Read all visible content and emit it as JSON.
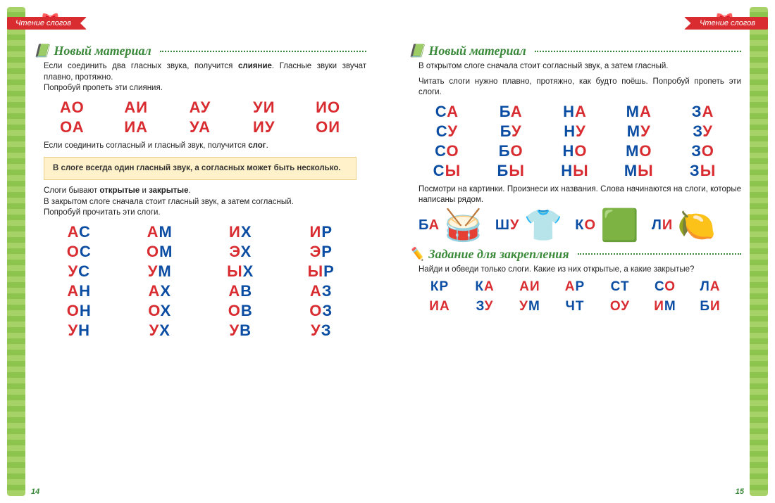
{
  "ribbon": "Чтение слогов",
  "colors": {
    "red": "#d82c31",
    "blue": "#0b4da2",
    "green": "#3a8a3a",
    "ruleBg": "#fff1c9"
  },
  "left": {
    "pageNum": "14",
    "section1": "Новый материал",
    "text1": "Если соединить два гласных звука, получится слияние. Гласные звуки звучат плавно, протяжно.",
    "text1b": "Попробуй пропеть эти слияния.",
    "grid1": [
      [
        [
          "А",
          "r"
        ],
        [
          "О",
          "r"
        ]
      ],
      [
        [
          "А",
          "r"
        ],
        [
          "И",
          "r"
        ]
      ],
      [
        [
          "А",
          "r"
        ],
        [
          "У",
          "r"
        ]
      ],
      [
        [
          "У",
          "r"
        ],
        [
          "И",
          "r"
        ]
      ],
      [
        [
          "И",
          "r"
        ],
        [
          "О",
          "r"
        ]
      ],
      [
        [
          "О",
          "r"
        ],
        [
          "А",
          "r"
        ]
      ],
      [
        [
          "И",
          "r"
        ],
        [
          "А",
          "r"
        ]
      ],
      [
        [
          "У",
          "r"
        ],
        [
          "А",
          "r"
        ]
      ],
      [
        [
          "И",
          "r"
        ],
        [
          "У",
          "r"
        ]
      ],
      [
        [
          "О",
          "r"
        ],
        [
          "И",
          "r"
        ]
      ]
    ],
    "text2": "Если соединить согласный и гласный звук, получится слог.",
    "rule": "В слоге всегда один гласный звук, а согласных может быть несколько.",
    "text3": "Слоги бывают открытые и закрытые.",
    "text4": "В закрытом слоге сначала стоит гласный звук, а затем согласный.",
    "text5": "Попробуй прочитать эти слоги.",
    "grid2": [
      [
        [
          "А",
          "r"
        ],
        [
          "С",
          "b"
        ]
      ],
      [
        [
          "А",
          "r"
        ],
        [
          "М",
          "b"
        ]
      ],
      [
        [
          "И",
          "r"
        ],
        [
          "Х",
          "b"
        ]
      ],
      [
        [
          "И",
          "r"
        ],
        [
          "Р",
          "b"
        ]
      ],
      [
        [
          "О",
          "r"
        ],
        [
          "С",
          "b"
        ]
      ],
      [
        [
          "О",
          "r"
        ],
        [
          "М",
          "b"
        ]
      ],
      [
        [
          "Э",
          "r"
        ],
        [
          "Х",
          "b"
        ]
      ],
      [
        [
          "Э",
          "r"
        ],
        [
          "Р",
          "b"
        ]
      ],
      [
        [
          "У",
          "r"
        ],
        [
          "С",
          "b"
        ]
      ],
      [
        [
          "У",
          "r"
        ],
        [
          "М",
          "b"
        ]
      ],
      [
        [
          "Ы",
          "r"
        ],
        [
          "Х",
          "b"
        ]
      ],
      [
        [
          "Ы",
          "r"
        ],
        [
          "Р",
          "b"
        ]
      ],
      [
        [
          "А",
          "r"
        ],
        [
          "Н",
          "b"
        ]
      ],
      [
        [
          "А",
          "r"
        ],
        [
          "Х",
          "b"
        ]
      ],
      [
        [
          "А",
          "r"
        ],
        [
          "В",
          "b"
        ]
      ],
      [
        [
          "А",
          "r"
        ],
        [
          "З",
          "b"
        ]
      ],
      [
        [
          "О",
          "r"
        ],
        [
          "Н",
          "b"
        ]
      ],
      [
        [
          "О",
          "r"
        ],
        [
          "Х",
          "b"
        ]
      ],
      [
        [
          "О",
          "r"
        ],
        [
          "В",
          "b"
        ]
      ],
      [
        [
          "О",
          "r"
        ],
        [
          "З",
          "b"
        ]
      ],
      [
        [
          "У",
          "r"
        ],
        [
          "Н",
          "b"
        ]
      ],
      [
        [
          "У",
          "r"
        ],
        [
          "Х",
          "b"
        ]
      ],
      [
        [
          "У",
          "r"
        ],
        [
          "В",
          "b"
        ]
      ],
      [
        [
          "У",
          "r"
        ],
        [
          "З",
          "b"
        ]
      ]
    ]
  },
  "right": {
    "pageNum": "15",
    "section1": "Новый материал",
    "text1": "В открытом слоге сначала стоит согласный звук, а затем гласный.",
    "text2": "Читать слоги нужно плавно, протяжно, как будто поёшь. Попробуй пропеть эти слоги.",
    "grid1": [
      [
        [
          "С",
          "b"
        ],
        [
          "А",
          "r"
        ]
      ],
      [
        [
          "Б",
          "b"
        ],
        [
          "А",
          "r"
        ]
      ],
      [
        [
          "Н",
          "b"
        ],
        [
          "А",
          "r"
        ]
      ],
      [
        [
          "М",
          "b"
        ],
        [
          "А",
          "r"
        ]
      ],
      [
        [
          "З",
          "b"
        ],
        [
          "А",
          "r"
        ]
      ],
      [
        [
          "С",
          "b"
        ],
        [
          "У",
          "r"
        ]
      ],
      [
        [
          "Б",
          "b"
        ],
        [
          "У",
          "r"
        ]
      ],
      [
        [
          "Н",
          "b"
        ],
        [
          "У",
          "r"
        ]
      ],
      [
        [
          "М",
          "b"
        ],
        [
          "У",
          "r"
        ]
      ],
      [
        [
          "З",
          "b"
        ],
        [
          "У",
          "r"
        ]
      ],
      [
        [
          "С",
          "b"
        ],
        [
          "О",
          "r"
        ]
      ],
      [
        [
          "Б",
          "b"
        ],
        [
          "О",
          "r"
        ]
      ],
      [
        [
          "Н",
          "b"
        ],
        [
          "О",
          "r"
        ]
      ],
      [
        [
          "М",
          "b"
        ],
        [
          "О",
          "r"
        ]
      ],
      [
        [
          "З",
          "b"
        ],
        [
          "О",
          "r"
        ]
      ],
      [
        [
          "С",
          "b"
        ],
        [
          "Ы",
          "r"
        ]
      ],
      [
        [
          "Б",
          "b"
        ],
        [
          "Ы",
          "r"
        ]
      ],
      [
        [
          "Н",
          "b"
        ],
        [
          "Ы",
          "r"
        ]
      ],
      [
        [
          "М",
          "b"
        ],
        [
          "Ы",
          "r"
        ]
      ],
      [
        [
          "З",
          "b"
        ],
        [
          "Ы",
          "r"
        ]
      ]
    ],
    "text3": "Посмотри на картинки. Произнеси их названия. Слова начинаются на слоги, которые написаны рядом.",
    "pics": [
      {
        "label": [
          [
            "Б",
            "b"
          ],
          [
            "А",
            "r"
          ]
        ],
        "emoji": "🥁"
      },
      {
        "label": [
          [
            "Ш",
            "b"
          ],
          [
            "У",
            "r"
          ]
        ],
        "emoji": "👕"
      },
      {
        "label": [
          [
            "К",
            "b"
          ],
          [
            "О",
            "r"
          ]
        ],
        "emoji": "🟩"
      },
      {
        "label": [
          [
            "Л",
            "b"
          ],
          [
            "И",
            "r"
          ]
        ],
        "emoji": "🍋"
      }
    ],
    "section2": "Задание для закрепления",
    "text4": "Найди и обведи только слоги. Какие из них открытые, а какие закрытые?",
    "grid2": [
      [
        [
          "К",
          "b"
        ],
        [
          "Р",
          "b"
        ]
      ],
      [
        [
          "К",
          "b"
        ],
        [
          "А",
          "r"
        ]
      ],
      [
        [
          "А",
          "r"
        ],
        [
          "И",
          "r"
        ]
      ],
      [
        [
          "А",
          "r"
        ],
        [
          "Р",
          "b"
        ]
      ],
      [
        [
          "С",
          "b"
        ],
        [
          "Т",
          "b"
        ]
      ],
      [
        [
          "С",
          "b"
        ],
        [
          "О",
          "r"
        ]
      ],
      [
        [
          "Л",
          "b"
        ],
        [
          "А",
          "r"
        ]
      ],
      [
        [
          "И",
          "r"
        ],
        [
          "А",
          "r"
        ]
      ],
      [
        [
          "З",
          "b"
        ],
        [
          "У",
          "r"
        ]
      ],
      [
        [
          "У",
          "r"
        ],
        [
          "М",
          "b"
        ]
      ],
      [
        [
          "Ч",
          "b"
        ],
        [
          "Т",
          "b"
        ]
      ],
      [
        [
          "О",
          "r"
        ],
        [
          "У",
          "r"
        ]
      ],
      [
        [
          "И",
          "r"
        ],
        [
          "М",
          "b"
        ]
      ],
      [
        [
          "Б",
          "b"
        ],
        [
          "И",
          "r"
        ]
      ]
    ]
  }
}
